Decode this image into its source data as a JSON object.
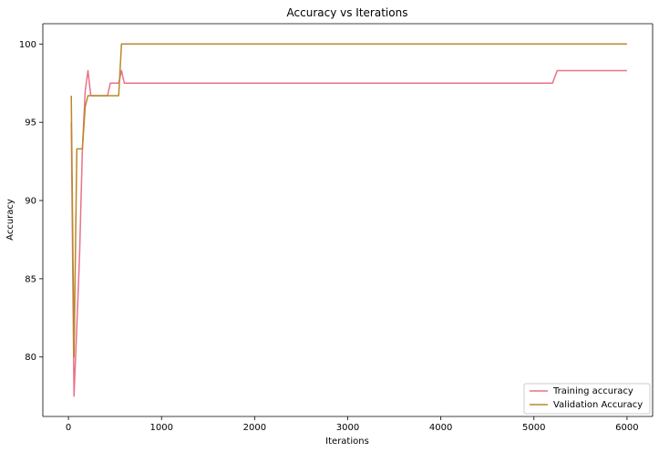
{
  "chart_data": {
    "type": "line",
    "title": "Accuracy vs Iterations",
    "xlabel": "Iterations",
    "ylabel": "Accuracy",
    "xlim": [
      -275,
      6275
    ],
    "ylim": [
      76.2,
      101.3
    ],
    "xticks": [
      0,
      1000,
      2000,
      3000,
      4000,
      5000,
      6000
    ],
    "yticks": [
      80,
      85,
      90,
      95,
      100
    ],
    "grid": false,
    "legend_position": "bottom-right",
    "series": [
      {
        "name": "Training accuracy",
        "color": "#e8728a",
        "x": [
          30,
          60,
          90,
          120,
          150,
          180,
          210,
          240,
          270,
          300,
          330,
          360,
          390,
          420,
          450,
          480,
          510,
          540,
          570,
          600,
          700,
          800,
          1000,
          2000,
          3000,
          4000,
          5000,
          5200,
          5250,
          5300,
          5500,
          6000
        ],
        "y": [
          95.0,
          77.5,
          82.0,
          86.5,
          93.3,
          97.0,
          98.3,
          96.7,
          96.7,
          96.7,
          96.7,
          96.7,
          96.7,
          96.7,
          97.5,
          97.5,
          97.5,
          97.5,
          98.3,
          97.5,
          97.5,
          97.5,
          97.5,
          97.5,
          97.5,
          97.5,
          97.5,
          97.5,
          98.3,
          98.3,
          98.3,
          98.3
        ]
      },
      {
        "name": "Validation Accuracy",
        "color": "#b8892c",
        "x": [
          30,
          60,
          90,
          120,
          150,
          180,
          210,
          240,
          270,
          300,
          330,
          360,
          390,
          420,
          450,
          480,
          510,
          540,
          570,
          600,
          800,
          1000,
          2000,
          3000,
          4000,
          5000,
          6000
        ],
        "y": [
          96.7,
          80.0,
          93.3,
          93.3,
          93.3,
          96.0,
          96.7,
          96.7,
          96.7,
          96.7,
          96.7,
          96.7,
          96.7,
          96.7,
          96.7,
          96.7,
          96.7,
          96.7,
          100.0,
          100.0,
          100.0,
          100.0,
          100.0,
          100.0,
          100.0,
          100.0,
          100.0
        ]
      }
    ]
  }
}
